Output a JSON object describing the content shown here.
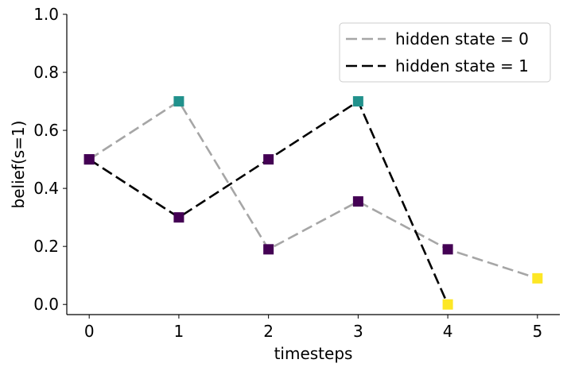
{
  "chart_data": {
    "type": "line",
    "xlabel": "timesteps",
    "ylabel": "belief(s=1)",
    "xlim": [
      -0.25,
      5.25
    ],
    "ylim": [
      -0.035,
      1.0
    ],
    "xticks": [
      "0",
      "1",
      "2",
      "3",
      "4",
      "5"
    ],
    "xtick_values": [
      0,
      1,
      2,
      3,
      4,
      5
    ],
    "yticks": [
      "0.0",
      "0.2",
      "0.4",
      "0.6",
      "0.8",
      "1.0"
    ],
    "ytick_values": [
      0,
      0.2,
      0.4,
      0.6,
      0.8,
      1.0
    ],
    "grid": false,
    "legend_position": "top-right",
    "series": [
      {
        "name": "hidden state = 0",
        "color": "#a6a6a6",
        "line_style": "dashed",
        "x": [
          0,
          1,
          2,
          3,
          4,
          5
        ],
        "y": [
          0.5,
          0.7,
          0.19,
          0.355,
          0.19,
          0.09
        ],
        "marker_colors": [
          "#440154",
          "#21918c",
          "#440154",
          "#440154",
          "#440154",
          "#fde725"
        ]
      },
      {
        "name": "hidden state = 1",
        "color": "#000000",
        "line_style": "dashed",
        "x": [
          0,
          1,
          2,
          3,
          4
        ],
        "y": [
          0.5,
          0.3,
          0.5,
          0.7,
          0.0
        ],
        "marker_colors": [
          "#440154",
          "#440154",
          "#440154",
          "#21918c",
          "#fde725"
        ]
      }
    ]
  }
}
